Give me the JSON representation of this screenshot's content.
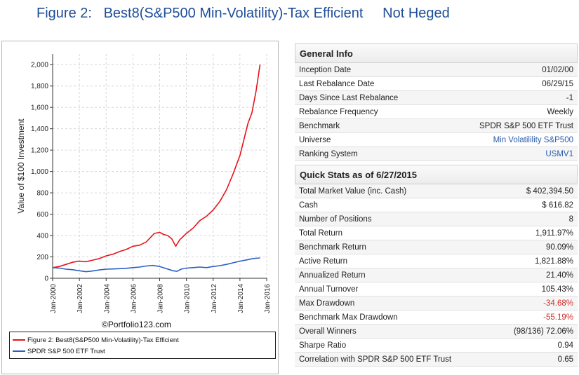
{
  "figure_title": "Figure 2:   Best8(S&P500 Min-Volatility)-Tax Efficient     Not Heged",
  "copyright": "©Portfolio123.com",
  "colors": {
    "portfolio": "#e8141c",
    "benchmark": "#2b5fc4",
    "title": "#1f4e99",
    "link": "#2a5caa",
    "negative": "#d03030"
  },
  "chart_data": {
    "type": "line",
    "ylabel": "Value of $100 Investment",
    "xlabel": "",
    "ylim": [
      0,
      2100
    ],
    "xlim": [
      2000.0,
      2016.0
    ],
    "y_ticks": [
      0,
      200,
      400,
      600,
      800,
      1000,
      1200,
      1400,
      1600,
      1800,
      2000
    ],
    "y_tick_labels": [
      "0",
      "200",
      "400",
      "600",
      "800",
      "1,000",
      "1,200",
      "1,400",
      "1,600",
      "1,800",
      "2,000"
    ],
    "x_ticks": [
      2000,
      2002,
      2004,
      2006,
      2008,
      2010,
      2012,
      2014,
      2016
    ],
    "x_tick_labels": [
      "Jan-2000",
      "Jan-2002",
      "Jan-2004",
      "Jan-2006",
      "Jan-2008",
      "Jan-2010",
      "Jan-2012",
      "Jan-2014",
      "Jan-2016"
    ],
    "grid": true,
    "legend_position": "bottom",
    "series": [
      {
        "name": "Figure 2:  Best8(S&P500 Min-Volatility)-Tax Efficient",
        "x": [
          2000.0,
          2000.5,
          2001.0,
          2001.5,
          2002.0,
          2002.5,
          2003.0,
          2003.5,
          2004.0,
          2004.5,
          2005.0,
          2005.5,
          2006.0,
          2006.5,
          2007.0,
          2007.3,
          2007.6,
          2008.0,
          2008.3,
          2008.6,
          2008.9,
          2009.2,
          2009.5,
          2010.0,
          2010.5,
          2011.0,
          2011.5,
          2012.0,
          2012.5,
          2013.0,
          2013.5,
          2014.0,
          2014.3,
          2014.6,
          2014.9,
          2015.2,
          2015.5
        ],
        "y": [
          100,
          110,
          130,
          150,
          160,
          155,
          170,
          185,
          210,
          225,
          250,
          270,
          300,
          310,
          340,
          380,
          420,
          430,
          410,
          400,
          370,
          300,
          360,
          420,
          470,
          540,
          580,
          640,
          720,
          830,
          980,
          1150,
          1300,
          1450,
          1550,
          1750,
          2000
        ]
      },
      {
        "name": "SPDR S&P 500 ETF Trust",
        "x": [
          2000.0,
          2000.5,
          2001.0,
          2001.5,
          2002.0,
          2002.5,
          2003.0,
          2003.5,
          2004.0,
          2004.5,
          2005.0,
          2005.5,
          2006.0,
          2006.5,
          2007.0,
          2007.5,
          2008.0,
          2008.5,
          2009.0,
          2009.3,
          2009.6,
          2010.0,
          2010.5,
          2011.0,
          2011.5,
          2012.0,
          2012.5,
          2013.0,
          2013.5,
          2014.0,
          2014.5,
          2015.0,
          2015.5
        ],
        "y": [
          100,
          95,
          85,
          80,
          70,
          62,
          68,
          78,
          85,
          87,
          90,
          93,
          100,
          105,
          115,
          120,
          110,
          90,
          70,
          65,
          85,
          95,
          100,
          105,
          100,
          110,
          118,
          130,
          145,
          160,
          172,
          185,
          190
        ]
      }
    ]
  },
  "general_info": {
    "header": "General Info",
    "rows": [
      {
        "label": "Inception Date",
        "value": "01/02/00"
      },
      {
        "label": "Last Rebalance Date",
        "value": "06/29/15"
      },
      {
        "label": "Days Since Last Rebalance",
        "value": "-1"
      },
      {
        "label": "Rebalance Frequency",
        "value": "Weekly"
      },
      {
        "label": "Benchmark",
        "value": "SPDR S&P 500 ETF Trust"
      },
      {
        "label": "Universe",
        "value": "Min Volatilility S&P500"
      },
      {
        "label": "Ranking System",
        "value": "USMV1"
      }
    ]
  },
  "quick_stats": {
    "header": "Quick Stats as of 6/27/2015",
    "rows": [
      {
        "label": "Total Market Value (inc. Cash)",
        "value": "$ 402,394.50"
      },
      {
        "label": "Cash",
        "value": "$ 616.82"
      },
      {
        "label": "Number of Positions",
        "value": "8"
      },
      {
        "label": "Total Return",
        "value": "1,911.97%"
      },
      {
        "label": "Benchmark Return",
        "value": "90.09%"
      },
      {
        "label": "Active Return",
        "value": "1,821.88%"
      },
      {
        "label": "Annualized Return",
        "value": "21.40%"
      },
      {
        "label": "Annual Turnover",
        "value": "105.43%"
      },
      {
        "label": "Max Drawdown",
        "value": "-34.68%"
      },
      {
        "label": "Benchmark Max Drawdown",
        "value": "-55.19%"
      },
      {
        "label": "Overall Winners",
        "value": "(98/136) 72.06%"
      },
      {
        "label": "Sharpe Ratio",
        "value": "0.94"
      },
      {
        "label": "Correlation with SPDR S&P 500 ETF Trust",
        "value": "0.65"
      }
    ]
  }
}
